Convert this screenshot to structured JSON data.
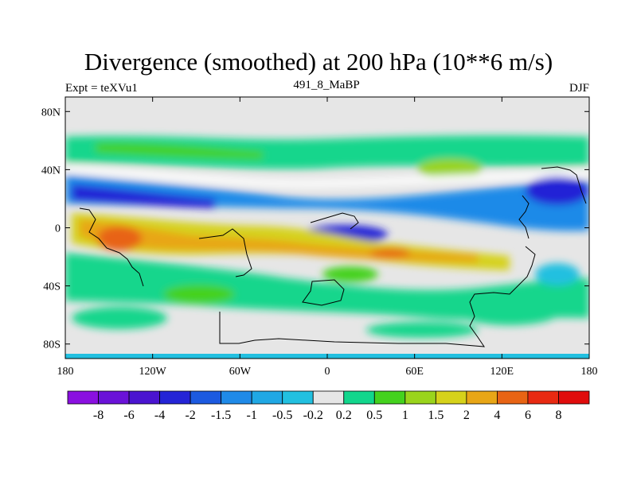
{
  "title": "Divergence (smoothed) at 200 hPa (10**6 m/s)",
  "left_label": "Expt = teXVu1",
  "center_label": "491_8_MaBP",
  "right_label": "DJF",
  "chart_data": {
    "type": "heatmap",
    "map": "global latitude-longitude contour map",
    "lon_range": [
      -180,
      180
    ],
    "lat_range": [
      -90,
      90
    ],
    "x_ticks": [
      "180",
      "120W",
      "60W",
      "0",
      "60E",
      "120E",
      "180"
    ],
    "y_ticks": [
      "80N",
      "40N",
      "0",
      "40S",
      "80S"
    ],
    "colorbar_levels": [
      "-8",
      "-6",
      "-4",
      "-2",
      "-1.5",
      "-1",
      "-0.5",
      "-0.2",
      "0.2",
      "0.5",
      "1",
      "1.5",
      "2",
      "4",
      "6",
      "8"
    ],
    "colorbar_colors": [
      "#8a10e0",
      "#6a12d8",
      "#4a14d0",
      "#2424d6",
      "#1c5ae0",
      "#1f8ae8",
      "#20a8e4",
      "#22c0e0",
      "#e6e6e6",
      "#12d68c",
      "#44d21e",
      "#9ad41c",
      "#d6d21a",
      "#e8a616",
      "#e86414",
      "#e82a12",
      "#e00c0c"
    ]
  }
}
